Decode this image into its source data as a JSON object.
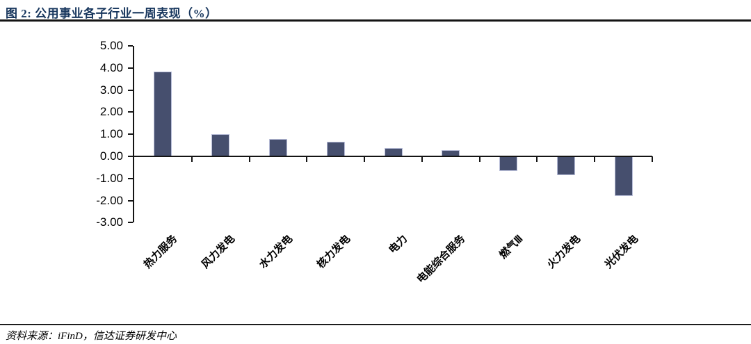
{
  "figure": {
    "title": "图 2: 公用事业各子行业一周表现（%）",
    "source": "资料来源：iFinD，信达证券研发中心"
  },
  "chart_data": {
    "type": "bar",
    "categories": [
      "热力服务",
      "风力发电",
      "水力发电",
      "核力发电",
      "电力",
      "电能综合服务",
      "燃气Ⅲ",
      "火力发电",
      "光伏发电"
    ],
    "values": [
      3.85,
      1.0,
      0.8,
      0.65,
      0.38,
      0.27,
      -0.65,
      -0.85,
      -1.8
    ],
    "title": "图 2: 公用事业各子行业一周表现（%）",
    "xlabel": "",
    "ylabel": "",
    "ylim": [
      -3,
      5
    ],
    "ytick_step": 1,
    "ytick_decimals": 2,
    "grid": false,
    "legend": null,
    "bar_color": "#464F6E",
    "bar_border_color": "#B8BDD8",
    "axis_color": "#141414"
  },
  "colors": {
    "title_text": "#17365D",
    "page_background": "#FFFFFF"
  }
}
